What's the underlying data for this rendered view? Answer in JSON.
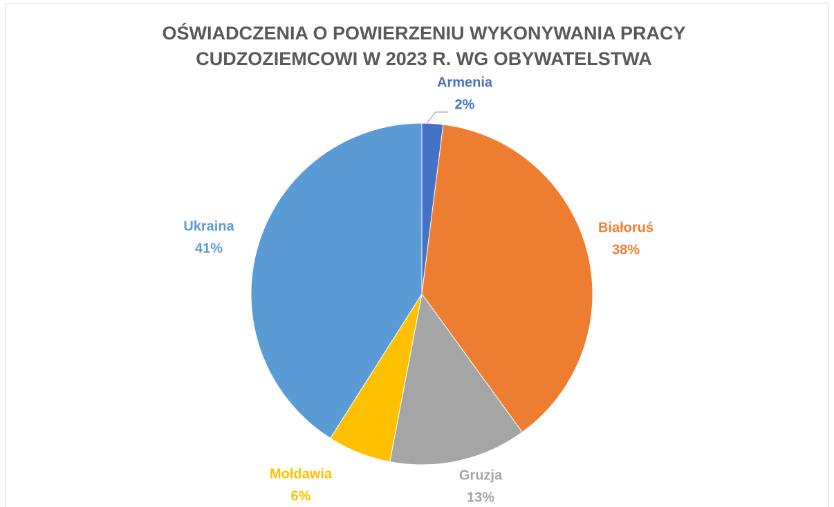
{
  "chart_data": {
    "type": "pie",
    "title": [
      "OŚWIADCZENIA O POWIERZENIU WYKONYWANIA PRACY",
      "CUDZOZIEMCOWI W 2023 R. WG OBYWATELSTWA"
    ],
    "categories": [
      "Armenia",
      "Białoruś",
      "Gruzja",
      "Mołdawia",
      "Ukraina"
    ],
    "values": [
      2,
      38,
      13,
      6,
      41
    ],
    "value_labels": [
      "2%",
      "38%",
      "13%",
      "6%",
      "41%"
    ],
    "colors": [
      "#4472c4",
      "#ed7d31",
      "#a5a5a5",
      "#ffc000",
      "#5b9bd5"
    ]
  }
}
